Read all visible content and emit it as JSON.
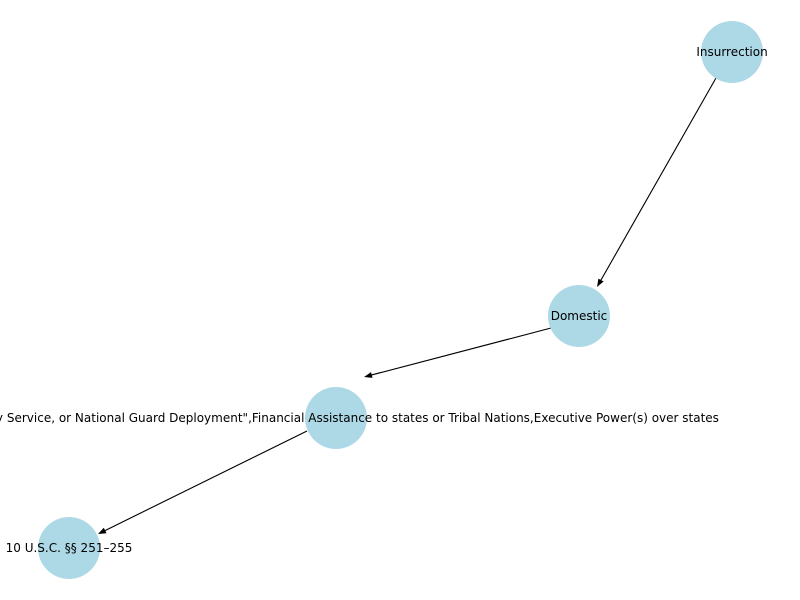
{
  "graph": {
    "node_color": "#add8e6",
    "nodes": [
      {
        "id": "insurrection",
        "label": "Insurrection"
      },
      {
        "id": "domestic",
        "label": "Domestic"
      },
      {
        "id": "military",
        "label": "\"Military Service, or National Guard Deployment\",Financial Assistance to states or Tribal Nations,Executive Power(s) over states"
      },
      {
        "id": "usc",
        "label": "10 U.S.C. §§ 251–255"
      }
    ],
    "edges": [
      {
        "from": "insurrection",
        "to": "domestic"
      },
      {
        "from": "domestic",
        "to": "military"
      },
      {
        "from": "military",
        "to": "usc"
      }
    ]
  }
}
